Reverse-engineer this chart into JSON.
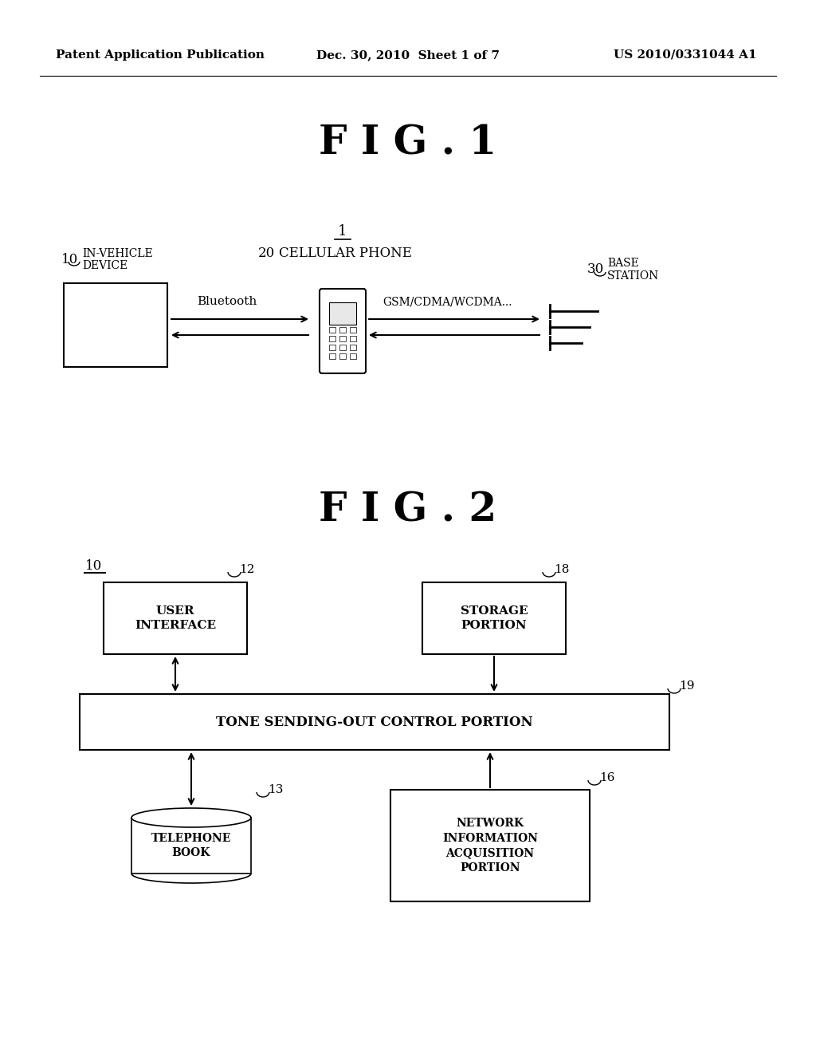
{
  "bg_color": "#ffffff",
  "header": {
    "left": "Patent Application Publication",
    "center": "Dec. 30, 2010  Sheet 1 of 7",
    "right": "US 2010/0331044 A1",
    "fontsize": 11
  },
  "fig1_title": "F I G . 1",
  "fig2_title": "F I G . 2",
  "title_fontsize": 36
}
